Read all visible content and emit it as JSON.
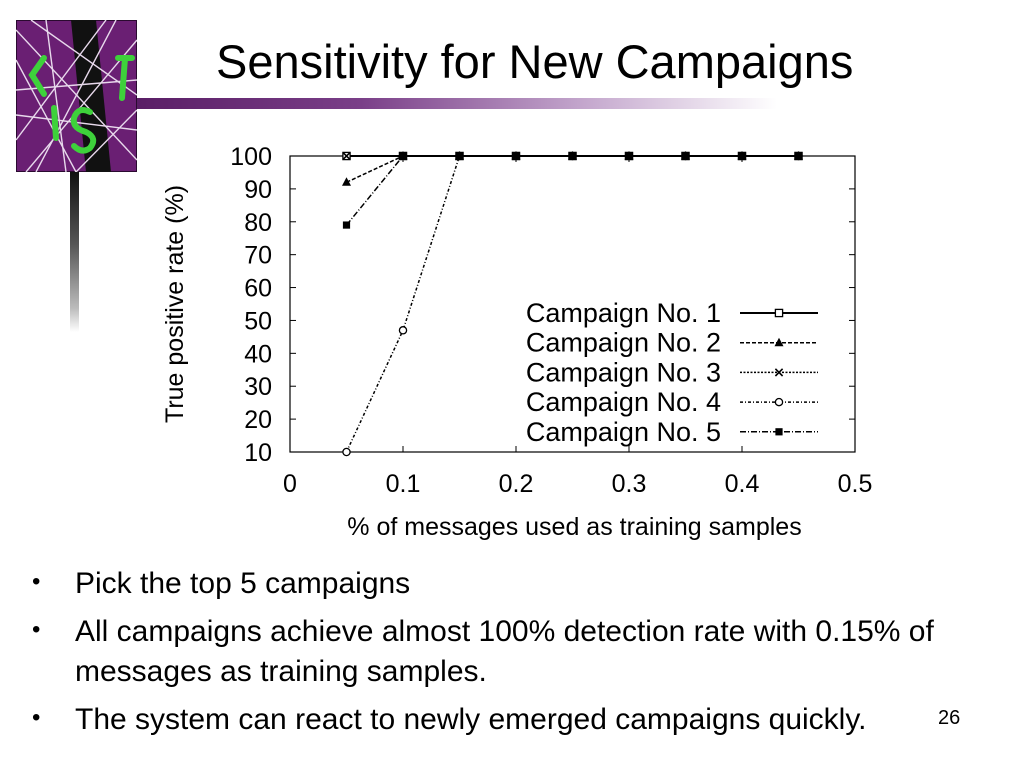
{
  "slide": {
    "title": "Sensitivity for New Campaigns",
    "page_number": "26",
    "logo_text": "CLIST",
    "bullets": [
      {
        "text": "Pick the top 5 campaigns"
      },
      {
        "text": "All campaigns achieve almost 100% detection rate with 0.15% of messages as training samples."
      },
      {
        "text": "The system can react to newly emerged campaigns quickly."
      }
    ]
  },
  "colors": {
    "title_bar_start": "#5a1e66",
    "logo_background": "#6a1f73",
    "logo_accent": "#3ed13b"
  },
  "chart_data": {
    "type": "line",
    "title": "",
    "xlabel": "% of messages used as training samples",
    "ylabel": "True positive rate (%)",
    "xlim": [
      0,
      0.5
    ],
    "ylim": [
      10,
      100
    ],
    "xticks": [
      "0",
      "0.1",
      "0.2",
      "0.3",
      "0.4",
      "0.5"
    ],
    "yticks": [
      "100",
      "90",
      "80",
      "70",
      "60",
      "50",
      "40",
      "30",
      "20",
      "10"
    ],
    "legend_position": "bottom-right",
    "grid": false,
    "series": [
      {
        "name": "Campaign No. 1",
        "marker": "open-square",
        "dash": "",
        "x": [
          0.05,
          0.1,
          0.15,
          0.2,
          0.25,
          0.3,
          0.35,
          0.4,
          0.45
        ],
        "y": [
          100,
          100,
          100,
          100,
          100,
          100,
          100,
          100,
          100
        ]
      },
      {
        "name": "Campaign No. 2",
        "marker": "filled-triangle",
        "dash": "4,2",
        "x": [
          0.05,
          0.1,
          0.15,
          0.2,
          0.25,
          0.3,
          0.35,
          0.4,
          0.45
        ],
        "y": [
          92,
          100,
          100,
          100,
          100,
          100,
          100,
          100,
          100
        ]
      },
      {
        "name": "Campaign No. 3",
        "marker": "cross",
        "dash": "2,1.5",
        "x": [
          0.05,
          0.1,
          0.15,
          0.2,
          0.25,
          0.3,
          0.35,
          0.4,
          0.45
        ],
        "y": [
          100,
          100,
          100,
          100,
          100,
          100,
          100,
          100,
          100
        ]
      },
      {
        "name": "Campaign No. 4",
        "marker": "open-circle",
        "dash": "3,2,1,2",
        "x": [
          0.05,
          0.1,
          0.15,
          0.2,
          0.25,
          0.3,
          0.35,
          0.4,
          0.45
        ],
        "y": [
          10,
          47,
          100,
          100,
          100,
          100,
          100,
          100,
          100
        ]
      },
      {
        "name": "Campaign No. 5",
        "marker": "filled-square",
        "dash": "6,2,1,2",
        "x": [
          0.05,
          0.1,
          0.15,
          0.2,
          0.25,
          0.3,
          0.35,
          0.4,
          0.45
        ],
        "y": [
          79,
          100,
          100,
          100,
          100,
          100,
          100,
          100,
          100
        ]
      }
    ]
  }
}
